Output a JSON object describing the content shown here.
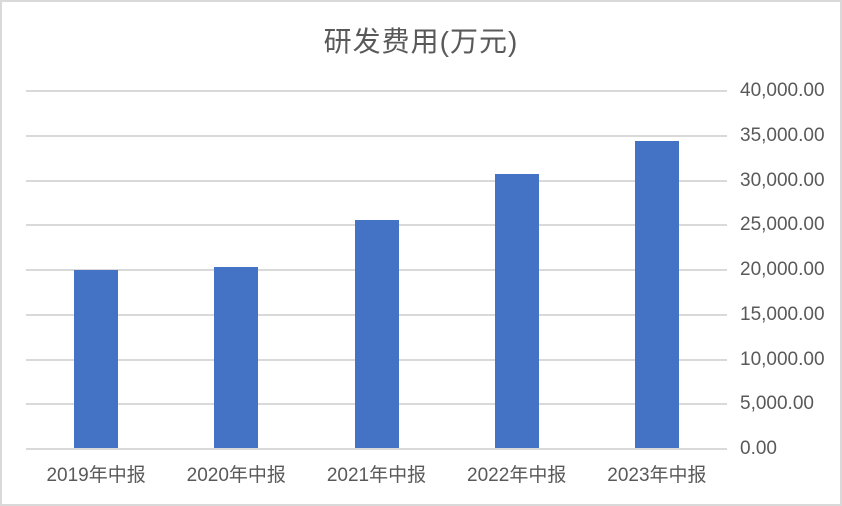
{
  "chart_data": {
    "type": "bar",
    "title": "研发费用(万元)",
    "xlabel": "",
    "ylabel": "",
    "categories": [
      "2019年中报",
      "2020年中报",
      "2021年中报",
      "2022年中报",
      "2023年中报"
    ],
    "values": [
      19900,
      20200,
      25500,
      30600,
      34300
    ],
    "ylim": [
      0,
      40000
    ],
    "y_tick_step": 5000,
    "y_tick_labels": [
      "0.00",
      "5,000.00",
      "10,000.00",
      "15,000.00",
      "20,000.00",
      "25,000.00",
      "30,000.00",
      "35,000.00",
      "40,000.00"
    ],
    "y_axis_position": "right",
    "legend": "none",
    "grid": "horizontal",
    "colors": {
      "bar": "#4472C4",
      "gridline": "#D9D9D9",
      "text": "#595959",
      "border": "#D9D9D9",
      "background": "#FFFFFF"
    }
  }
}
